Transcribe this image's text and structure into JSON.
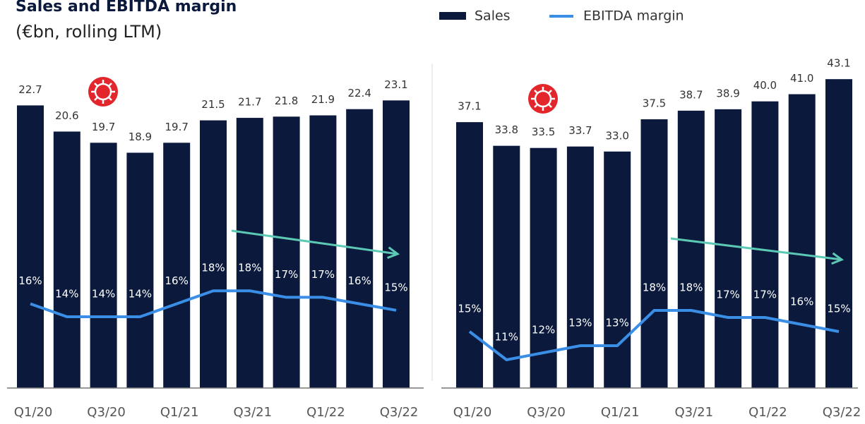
{
  "header": {
    "title": "Sales and EBITDA margin",
    "subtitle": "(€bn, rolling LTM)"
  },
  "chart_data": [
    {
      "type": "bar",
      "categories": [
        "Q1/20",
        null,
        "Q3/20",
        null,
        "Q1/21",
        null,
        "Q3/21",
        null,
        "Q1/22",
        null,
        "Q3/22"
      ],
      "series": [
        {
          "name": "Sales",
          "color": "#0b1a3c",
          "values": [
            22.7,
            20.6,
            19.7,
            18.9,
            19.7,
            21.5,
            21.7,
            21.8,
            21.9,
            22.4,
            23.1
          ]
        },
        {
          "name": "EBITDA margin",
          "color": "#3a8ee6",
          "type": "line",
          "axis": "y2",
          "values": [
            16,
            14,
            14,
            14,
            16,
            18,
            18,
            17,
            17,
            16,
            15
          ],
          "value_labels": [
            "16%",
            "14%",
            "14%",
            "14%",
            "16%",
            "18%",
            "18%",
            "17%",
            "17%",
            "16%",
            "15%"
          ]
        }
      ],
      "ylim": [
        0,
        25.5
      ],
      "y2lim": [
        3,
        52
      ]
    },
    {
      "type": "bar",
      "categories": [
        "Q1/20",
        null,
        "Q3/20",
        null,
        "Q1/21",
        null,
        "Q3/21",
        null,
        "Q1/22",
        null,
        "Q3/22"
      ],
      "series": [
        {
          "name": "Sales",
          "color": "#0b1a3c",
          "values": [
            37.1,
            33.8,
            33.5,
            33.7,
            33.0,
            37.5,
            38.7,
            38.9,
            40.0,
            41.0,
            43.1
          ],
          "value_labels": [
            "37.1",
            "33.8",
            "33.5",
            "33.7",
            "33.0",
            "37.5",
            "38.7",
            "38.9",
            "40.0",
            "41.0",
            "43.1"
          ]
        },
        {
          "name": "EBITDA margin",
          "color": "#3a8ee6",
          "type": "line",
          "axis": "y2",
          "values": [
            15,
            11,
            12,
            13,
            13,
            18,
            18,
            17,
            17,
            16,
            15
          ],
          "value_labels": [
            "15%",
            "11%",
            "12%",
            "13%",
            "13%",
            "18%",
            "18%",
            "17%",
            "17%",
            "16%",
            "15%"
          ]
        }
      ],
      "ylim": [
        0,
        44.3
      ],
      "y2lim": [
        7,
        52
      ]
    }
  ]
}
